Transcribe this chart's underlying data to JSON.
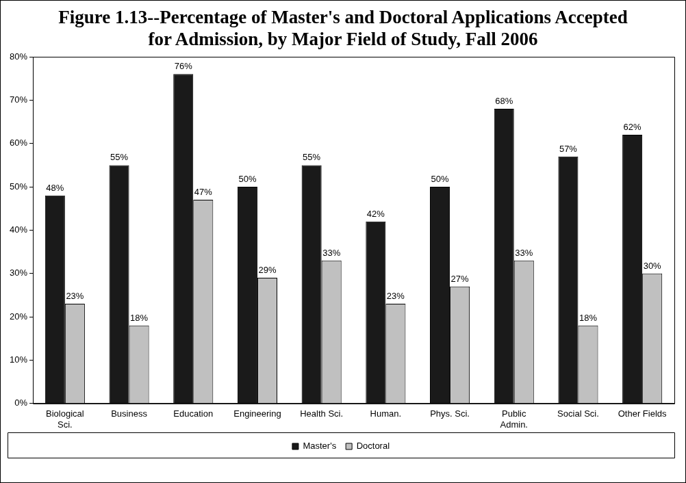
{
  "chart_data": {
    "type": "bar",
    "title": "Figure 1.13--Percentage of Master's and Doctoral Applications Accepted for Admission, by Major Field of Study, Fall 2006",
    "categories": [
      "Biological Sci.",
      "Business",
      "Education",
      "Engineering",
      "Health Sci.",
      "Human.",
      "Phys. Sci.",
      "Public Admin.",
      "Social Sci.",
      "Other Fields"
    ],
    "series": [
      {
        "name": "Master's",
        "color": "#1a1a1a",
        "values": [
          48,
          55,
          76,
          50,
          55,
          42,
          50,
          68,
          57,
          62
        ],
        "value_labels": [
          "48%",
          "55%",
          "76%",
          "50%",
          "55%",
          "42%",
          "50%",
          "68%",
          "57%",
          "62%"
        ]
      },
      {
        "name": "Doctoral",
        "color": "#c0c0c0",
        "values": [
          23,
          18,
          47,
          29,
          33,
          23,
          27,
          33,
          18,
          30
        ],
        "value_labels": [
          "23%",
          "18%",
          "47%",
          "29%",
          "33%",
          "23%",
          "27%",
          "33%",
          "18%",
          "30%"
        ]
      }
    ],
    "ylim": [
      0,
      80
    ],
    "yticks": [
      {
        "value": 0,
        "label": "0%"
      },
      {
        "value": 10,
        "label": "10%"
      },
      {
        "value": 20,
        "label": "20%"
      },
      {
        "value": 30,
        "label": "30%"
      },
      {
        "value": 40,
        "label": "40%"
      },
      {
        "value": 50,
        "label": "50%"
      },
      {
        "value": 60,
        "label": "60%"
      },
      {
        "value": 70,
        "label": "70%"
      },
      {
        "value": 80,
        "label": "80%"
      }
    ],
    "grid": false,
    "legend": "bottom"
  }
}
